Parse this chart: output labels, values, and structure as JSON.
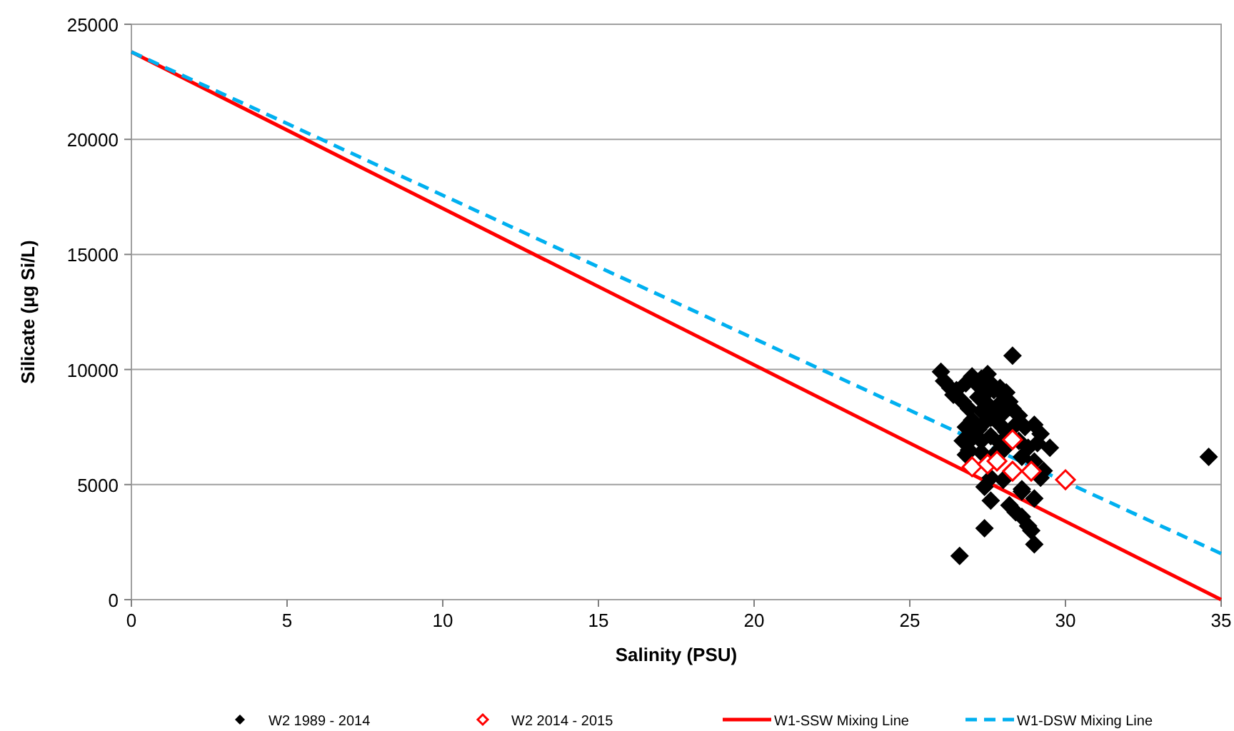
{
  "chart_data": {
    "type": "scatter",
    "xlabel": "Salinity (PSU)",
    "ylabel": "Silicate (µg Si/L)",
    "xlim": [
      0,
      35
    ],
    "xticks": [
      0,
      5,
      10,
      15,
      20,
      25,
      30,
      35
    ],
    "ylim": [
      0,
      25000
    ],
    "yticks": [
      0,
      5000,
      10000,
      15000,
      20000,
      25000
    ],
    "grid": "y",
    "legend": "bottom",
    "series": [
      {
        "name": "W2  1989 - 2014",
        "marker": "diamond",
        "color": "#000000",
        "x": [
          26.0,
          26.1,
          26.3,
          26.4,
          26.5,
          26.7,
          26.8,
          27.0,
          27.2,
          27.3,
          27.5,
          27.6,
          27.2,
          27.4,
          27.7,
          27.9,
          28.0,
          28.1,
          28.2,
          26.9,
          27.3,
          27.5,
          27.8,
          28.0,
          28.3,
          28.5,
          26.8,
          27.0,
          27.2,
          27.4,
          27.6,
          27.9,
          28.1,
          28.4,
          28.7,
          29.0,
          29.2,
          27.0,
          27.3,
          27.6,
          27.9,
          28.5,
          28.8,
          29.1,
          29.5,
          26.7,
          26.9,
          27.3,
          27.7,
          28.0,
          28.6,
          29.0,
          29.3,
          26.8,
          27.6,
          27.4,
          28.0,
          28.6,
          29.2,
          28.6,
          29.0,
          27.6,
          28.2,
          28.4,
          28.6,
          28.8,
          28.9,
          27.4,
          29.0,
          26.6,
          28.3,
          34.6
        ],
        "values": [
          9900,
          9500,
          9200,
          8900,
          9100,
          8600,
          9400,
          9700,
          9300,
          9600,
          9800,
          9400,
          8800,
          8900,
          9100,
          9200,
          8900,
          9000,
          8600,
          8300,
          8200,
          8500,
          8400,
          8100,
          8300,
          8000,
          7500,
          7800,
          7400,
          7700,
          7900,
          7600,
          7300,
          7600,
          7500,
          7600,
          7200,
          7000,
          6900,
          7100,
          6800,
          6900,
          6600,
          6800,
          6600,
          6900,
          6500,
          6400,
          6300,
          6500,
          6200,
          6000,
          5600,
          6300,
          5300,
          4900,
          5200,
          4800,
          5300,
          4700,
          4400,
          4300,
          4100,
          3800,
          3600,
          3200,
          3000,
          3100,
          2400,
          1900,
          10600,
          6200
        ]
      },
      {
        "name": "W2  2014 - 2015",
        "marker": "diamond_open",
        "color": "#ff0000",
        "x": [
          27.0,
          27.5,
          27.8,
          28.3,
          28.9,
          30.0,
          28.3
        ],
        "values": [
          5770,
          5890,
          6020,
          5580,
          5580,
          5210,
          6950
        ]
      },
      {
        "name": "W1-SSW Mixing Line",
        "type": "line",
        "marker": "none",
        "line_style": "solid",
        "color": "#ff0000",
        "x": [
          0,
          35
        ],
        "values": [
          23800,
          0
        ]
      },
      {
        "name": "W1-DSW Mixing Line",
        "type": "line",
        "marker": "none",
        "line_style": "dashed",
        "color": "#00b0f0",
        "x": [
          0,
          35
        ],
        "values": [
          23800,
          2000
        ]
      }
    ]
  }
}
